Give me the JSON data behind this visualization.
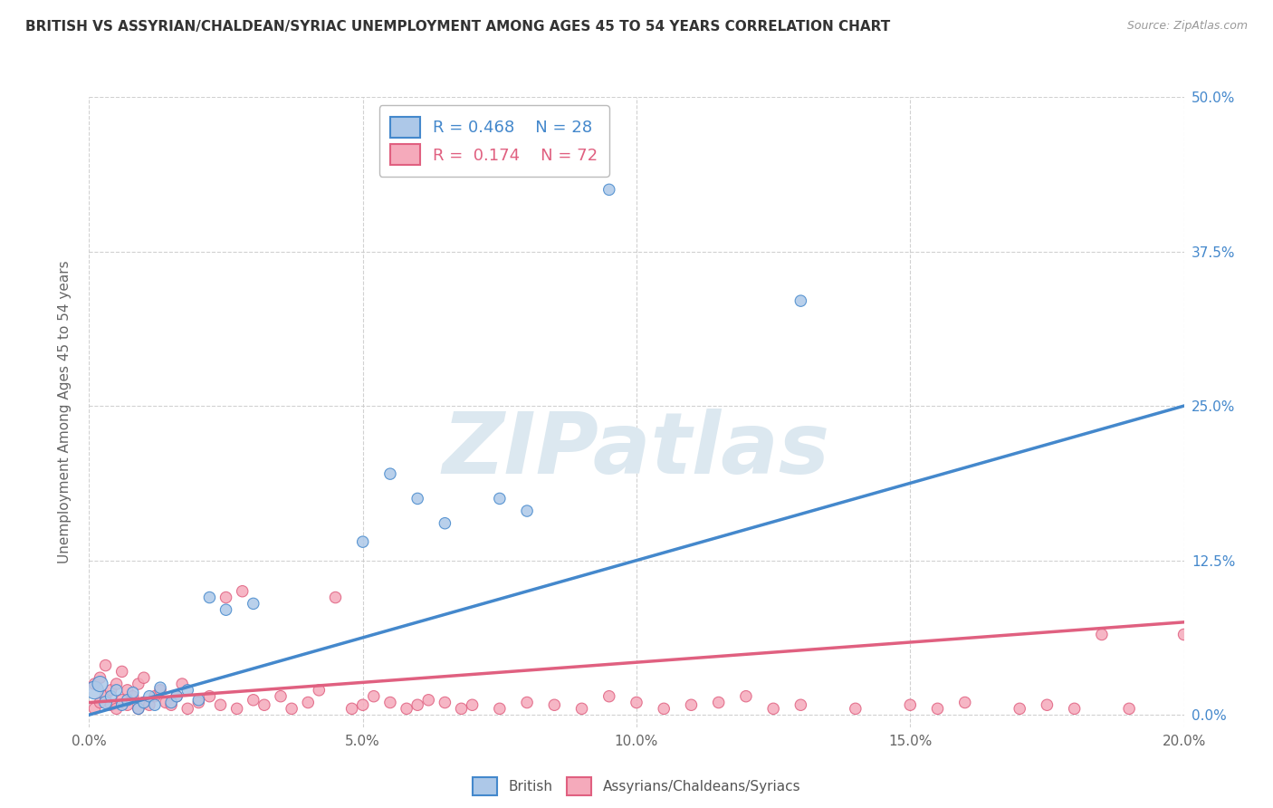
{
  "title": "BRITISH VS ASSYRIAN/CHALDEAN/SYRIAC UNEMPLOYMENT AMONG AGES 45 TO 54 YEARS CORRELATION CHART",
  "source": "Source: ZipAtlas.com",
  "ylabel": "Unemployment Among Ages 45 to 54 years",
  "xlim": [
    0.0,
    0.2
  ],
  "ylim": [
    -0.01,
    0.5
  ],
  "blue_R": 0.468,
  "blue_N": 28,
  "pink_R": 0.174,
  "pink_N": 72,
  "blue_color": "#adc8e8",
  "pink_color": "#f5aabb",
  "blue_line_color": "#4488cc",
  "pink_line_color": "#e06080",
  "legend_border_color": "#bbbbbb",
  "grid_color": "#cccccc",
  "watermark_color": "#dce8f0",
  "title_color": "#333333",
  "axis_label_color": "#666666",
  "right_tick_color": "#4488cc",
  "blue_points_x": [
    0.001,
    0.002,
    0.003,
    0.004,
    0.005,
    0.006,
    0.007,
    0.008,
    0.009,
    0.01,
    0.011,
    0.012,
    0.013,
    0.015,
    0.016,
    0.018,
    0.02,
    0.022,
    0.025,
    0.03,
    0.05,
    0.055,
    0.06,
    0.065,
    0.075,
    0.08,
    0.095,
    0.13
  ],
  "blue_points_y": [
    0.02,
    0.025,
    0.01,
    0.015,
    0.02,
    0.008,
    0.012,
    0.018,
    0.005,
    0.01,
    0.015,
    0.008,
    0.022,
    0.01,
    0.015,
    0.02,
    0.012,
    0.095,
    0.085,
    0.09,
    0.14,
    0.195,
    0.175,
    0.155,
    0.175,
    0.165,
    0.425,
    0.335
  ],
  "blue_sizes": [
    200,
    150,
    100,
    80,
    80,
    80,
    80,
    80,
    80,
    80,
    80,
    80,
    80,
    80,
    80,
    80,
    80,
    80,
    80,
    80,
    80,
    80,
    80,
    80,
    80,
    80,
    80,
    80
  ],
  "pink_points_x": [
    0.001,
    0.001,
    0.002,
    0.002,
    0.003,
    0.003,
    0.004,
    0.004,
    0.005,
    0.005,
    0.006,
    0.006,
    0.007,
    0.007,
    0.008,
    0.009,
    0.009,
    0.01,
    0.01,
    0.011,
    0.012,
    0.013,
    0.014,
    0.015,
    0.016,
    0.017,
    0.018,
    0.02,
    0.022,
    0.024,
    0.025,
    0.027,
    0.028,
    0.03,
    0.032,
    0.035,
    0.037,
    0.04,
    0.042,
    0.045,
    0.048,
    0.05,
    0.052,
    0.055,
    0.058,
    0.06,
    0.062,
    0.065,
    0.068,
    0.07,
    0.075,
    0.08,
    0.085,
    0.09,
    0.095,
    0.1,
    0.105,
    0.11,
    0.115,
    0.12,
    0.125,
    0.13,
    0.14,
    0.15,
    0.155,
    0.16,
    0.17,
    0.175,
    0.18,
    0.185,
    0.19,
    0.2
  ],
  "pink_points_y": [
    0.005,
    0.025,
    0.01,
    0.03,
    0.015,
    0.04,
    0.02,
    0.008,
    0.025,
    0.005,
    0.012,
    0.035,
    0.008,
    0.02,
    0.015,
    0.005,
    0.025,
    0.01,
    0.03,
    0.008,
    0.015,
    0.02,
    0.01,
    0.008,
    0.015,
    0.025,
    0.005,
    0.01,
    0.015,
    0.008,
    0.095,
    0.005,
    0.1,
    0.012,
    0.008,
    0.015,
    0.005,
    0.01,
    0.02,
    0.095,
    0.005,
    0.008,
    0.015,
    0.01,
    0.005,
    0.008,
    0.012,
    0.01,
    0.005,
    0.008,
    0.005,
    0.01,
    0.008,
    0.005,
    0.015,
    0.01,
    0.005,
    0.008,
    0.01,
    0.015,
    0.005,
    0.008,
    0.005,
    0.008,
    0.005,
    0.01,
    0.005,
    0.008,
    0.005,
    0.065,
    0.005,
    0.065
  ],
  "pink_sizes": [
    80,
    80,
    80,
    80,
    80,
    80,
    80,
    80,
    80,
    80,
    80,
    80,
    80,
    80,
    80,
    80,
    80,
    80,
    80,
    80,
    80,
    80,
    80,
    80,
    80,
    80,
    80,
    80,
    80,
    80,
    80,
    80,
    80,
    80,
    80,
    80,
    80,
    80,
    80,
    80,
    80,
    80,
    80,
    80,
    80,
    80,
    80,
    80,
    80,
    80,
    80,
    80,
    80,
    80,
    80,
    80,
    80,
    80,
    80,
    80,
    80,
    80,
    80,
    80,
    80,
    80,
    80,
    80,
    80,
    80,
    80,
    80
  ],
  "blue_line_x0": 0.0,
  "blue_line_y0": 0.0,
  "blue_line_x1": 0.2,
  "blue_line_y1": 0.25,
  "pink_line_x0": 0.0,
  "pink_line_y0": 0.01,
  "pink_line_x1": 0.2,
  "pink_line_y1": 0.075
}
